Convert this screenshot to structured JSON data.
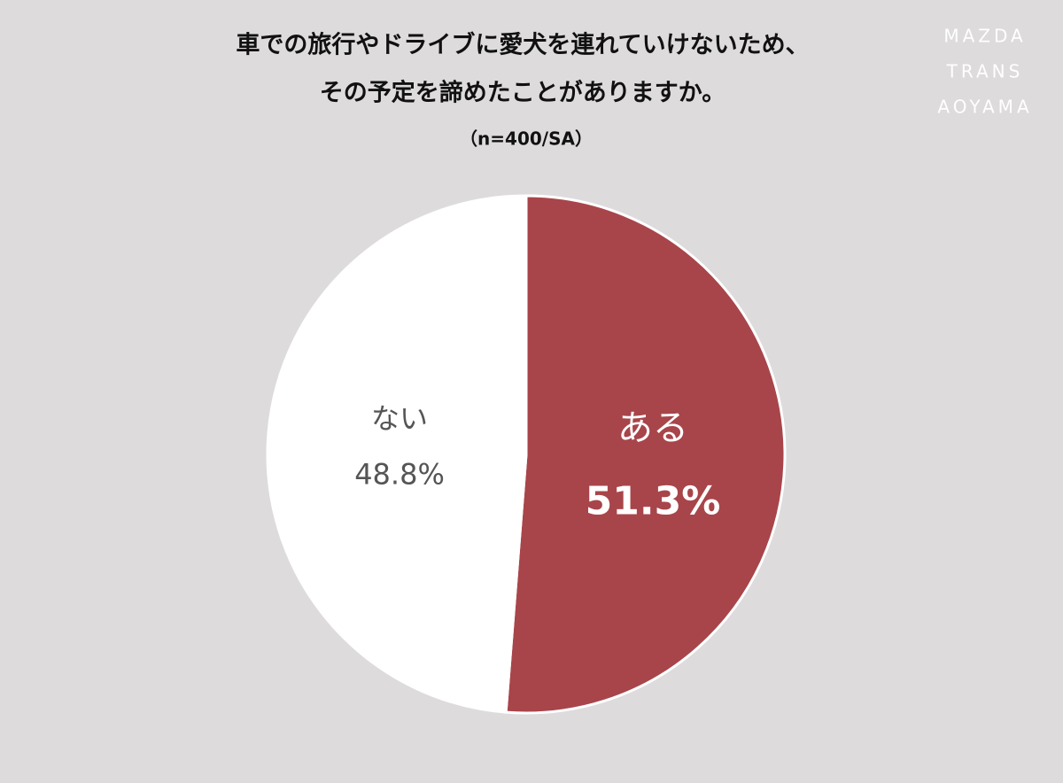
{
  "chart_data": {
    "type": "pie",
    "title": [
      "車での旅行やドライブに愛犬を連れていけないため、",
      "その予定を諦めたことがありますか。"
    ],
    "subtitle": "（n=400/SA）",
    "logo": [
      "MAZDA",
      "TRANS",
      "AOYAMA"
    ],
    "categories": [
      "ある",
      "ない"
    ],
    "values": [
      51.3,
      48.8
    ],
    "value_labels": [
      "51.3%",
      "48.8%"
    ],
    "colors": [
      "#a8454a",
      "#ffffff"
    ],
    "label_colors": [
      "#ffffff",
      "#555555"
    ]
  }
}
